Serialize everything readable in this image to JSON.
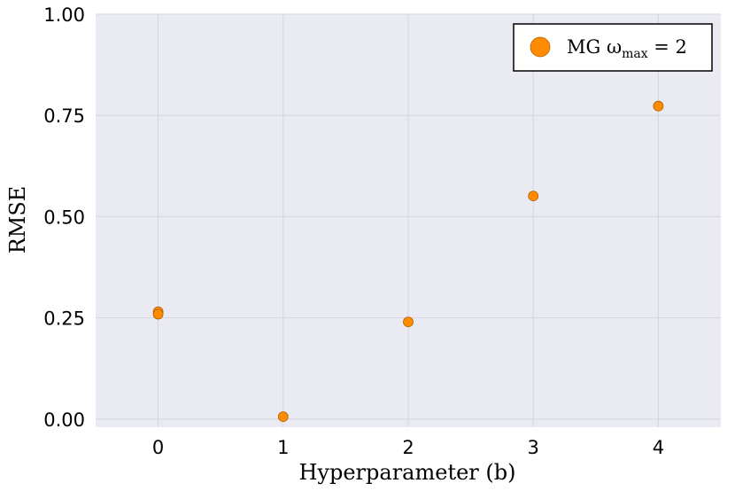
{
  "chart_data": {
    "type": "scatter",
    "title": "",
    "xlabel": "Hyperparameter (b)",
    "ylabel": "RMSE",
    "xlim": [
      -0.5,
      4.5
    ],
    "ylim": [
      -0.02,
      1.0
    ],
    "xticks": [
      0,
      1,
      2,
      3,
      4
    ],
    "xtick_labels": [
      "0",
      "1",
      "2",
      "3",
      "4"
    ],
    "yticks": [
      0.0,
      0.25,
      0.5,
      0.75,
      1.0
    ],
    "ytick_labels": [
      "0.00",
      "0.25",
      "0.50",
      "0.75",
      "1.00"
    ],
    "grid": true,
    "legend_position": "top-right",
    "series": [
      {
        "name": "MG ωmax = 2",
        "legend_parts": {
          "main": "MG  ω",
          "sub": "max",
          "tail": " = 2"
        },
        "color": "#ff8c00",
        "edge_color": "#b35f00",
        "points": [
          {
            "x": 0,
            "y": 0.265
          },
          {
            "x": 0,
            "y": 0.259
          },
          {
            "x": 1,
            "y": 0.006
          },
          {
            "x": 2,
            "y": 0.24
          },
          {
            "x": 3,
            "y": 0.551
          },
          {
            "x": 4,
            "y": 0.773
          }
        ]
      }
    ],
    "colors": {
      "plot_background": "#eaeaf2",
      "grid": "#d5d5dd"
    }
  }
}
